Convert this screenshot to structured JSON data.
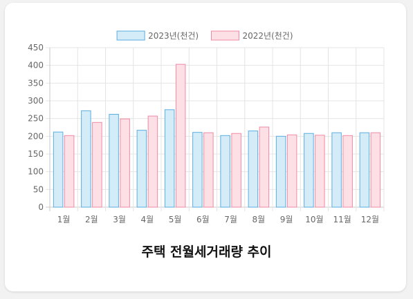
{
  "chart_data": {
    "type": "bar",
    "title": "주택 전월세거래량 추이",
    "categories": [
      "1월",
      "2월",
      "3월",
      "4월",
      "5월",
      "6월",
      "7월",
      "8월",
      "9월",
      "10월",
      "11월",
      "12월"
    ],
    "series": [
      {
        "name": "2023년(천건)",
        "values": [
          212,
          272,
          262,
          217,
          275,
          211,
          202,
          215,
          200,
          208,
          210,
          210
        ],
        "fill": "#d4ebf8",
        "stroke": "#5aaee0"
      },
      {
        "name": "2022년(천건)",
        "values": [
          202,
          239,
          249,
          257,
          403,
          210,
          208,
          226,
          204,
          203,
          202,
          210
        ],
        "fill": "#fde0e6",
        "stroke": "#f08aa4"
      }
    ],
    "ylim": [
      0,
      450
    ],
    "yticks": [
      0,
      50,
      100,
      150,
      200,
      250,
      300,
      350,
      400,
      450
    ],
    "grid": true,
    "legend": "top-center"
  }
}
